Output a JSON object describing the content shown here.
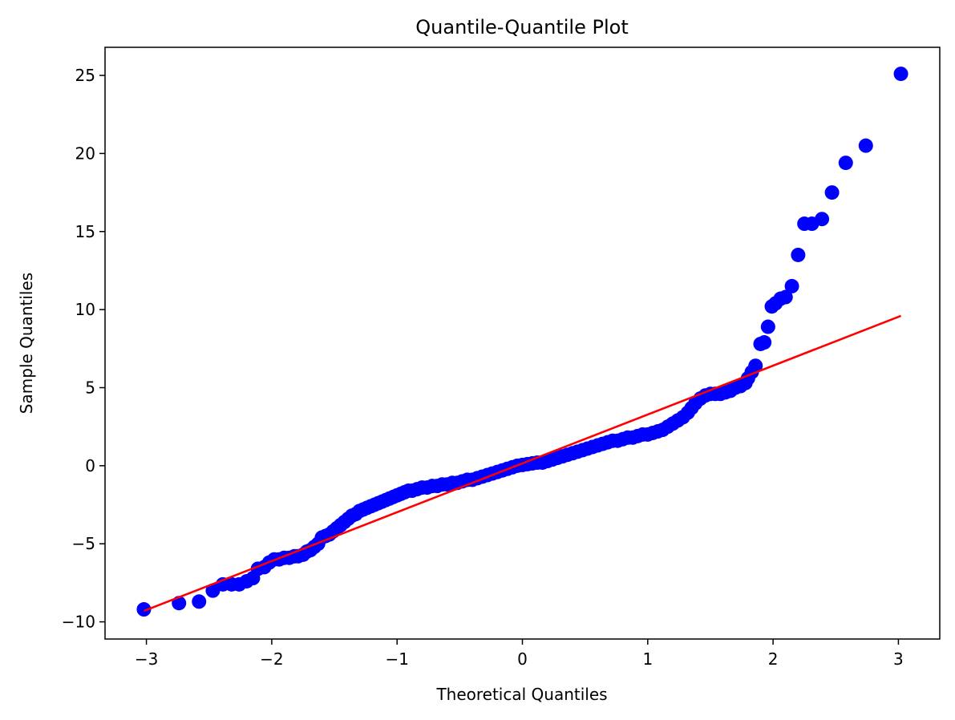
{
  "chart_data": {
    "type": "scatter",
    "title": "Quantile-Quantile Plot",
    "xlabel": "Theoretical Quantiles",
    "ylabel": "Sample Quantiles",
    "xlim": [
      -3.33,
      3.33
    ],
    "ylim": [
      -11.1,
      26.8
    ],
    "x_ticks": [
      -3,
      -2,
      -1,
      0,
      1,
      2,
      3
    ],
    "x_tick_labels": [
      "−3",
      "−2",
      "−1",
      "0",
      "1",
      "2",
      "3"
    ],
    "y_ticks": [
      -10,
      -5,
      0,
      5,
      10,
      15,
      20,
      25
    ],
    "y_tick_labels": [
      "−10",
      "−5",
      "0",
      "5",
      "10",
      "15",
      "20",
      "25"
    ],
    "grid": false,
    "series": [
      {
        "kind": "points",
        "color": "#0000ff",
        "points": [
          [
            -3.02,
            -9.2
          ],
          [
            -2.74,
            -8.8
          ],
          [
            -2.58,
            -8.7
          ],
          [
            -2.47,
            -8.0
          ],
          [
            -2.39,
            -7.6
          ],
          [
            -2.32,
            -7.6
          ],
          [
            -2.26,
            -7.6
          ],
          [
            -2.2,
            -7.4
          ],
          [
            -2.15,
            -7.2
          ],
          [
            -2.11,
            -6.6
          ],
          [
            -2.06,
            -6.5
          ],
          [
            -2.02,
            -6.2
          ],
          [
            -1.98,
            -6.0
          ],
          [
            -1.94,
            -6.0
          ],
          [
            -1.9,
            -5.9
          ],
          [
            -1.86,
            -5.9
          ],
          [
            -1.82,
            -5.8
          ],
          [
            -1.79,
            -5.8
          ],
          [
            -1.75,
            -5.7
          ],
          [
            -1.72,
            -5.5
          ],
          [
            -1.69,
            -5.4
          ],
          [
            -1.66,
            -5.2
          ],
          [
            -1.63,
            -5.0
          ],
          [
            -1.6,
            -4.6
          ],
          [
            -1.57,
            -4.5
          ],
          [
            -1.54,
            -4.4
          ],
          [
            -1.51,
            -4.2
          ],
          [
            -1.48,
            -4.0
          ],
          [
            -1.45,
            -3.8
          ],
          [
            -1.42,
            -3.6
          ],
          [
            -1.39,
            -3.4
          ],
          [
            -1.36,
            -3.2
          ],
          [
            -1.33,
            -3.1
          ],
          [
            -1.3,
            -2.9
          ],
          [
            -1.27,
            -2.8
          ],
          [
            -1.24,
            -2.7
          ],
          [
            -1.21,
            -2.6
          ],
          [
            -1.18,
            -2.5
          ],
          [
            -1.15,
            -2.4
          ],
          [
            -1.12,
            -2.3
          ],
          [
            -1.09,
            -2.2
          ],
          [
            -1.06,
            -2.1
          ],
          [
            -1.03,
            -2.0
          ],
          [
            -1.0,
            -1.9
          ],
          [
            -0.97,
            -1.8
          ],
          [
            -0.94,
            -1.7
          ],
          [
            -0.91,
            -1.6
          ],
          [
            -0.88,
            -1.6
          ],
          [
            -0.84,
            -1.5
          ],
          [
            -0.8,
            -1.4
          ],
          [
            -0.76,
            -1.4
          ],
          [
            -0.72,
            -1.3
          ],
          [
            -0.68,
            -1.3
          ],
          [
            -0.64,
            -1.2
          ],
          [
            -0.6,
            -1.2
          ],
          [
            -0.56,
            -1.1
          ],
          [
            -0.52,
            -1.1
          ],
          [
            -0.48,
            -1.0
          ],
          [
            -0.44,
            -0.9
          ],
          [
            -0.4,
            -0.9
          ],
          [
            -0.36,
            -0.8
          ],
          [
            -0.32,
            -0.7
          ],
          [
            -0.28,
            -0.6
          ],
          [
            -0.24,
            -0.5
          ],
          [
            -0.2,
            -0.4
          ],
          [
            -0.16,
            -0.3
          ],
          [
            -0.12,
            -0.2
          ],
          [
            -0.08,
            -0.1
          ],
          [
            -0.04,
            0.0
          ],
          [
            0.0,
            0.05
          ],
          [
            0.04,
            0.1
          ],
          [
            0.08,
            0.15
          ],
          [
            0.12,
            0.2
          ],
          [
            0.16,
            0.2
          ],
          [
            0.2,
            0.3
          ],
          [
            0.24,
            0.4
          ],
          [
            0.28,
            0.5
          ],
          [
            0.32,
            0.6
          ],
          [
            0.36,
            0.7
          ],
          [
            0.4,
            0.8
          ],
          [
            0.44,
            0.9
          ],
          [
            0.48,
            1.0
          ],
          [
            0.52,
            1.1
          ],
          [
            0.56,
            1.2
          ],
          [
            0.6,
            1.3
          ],
          [
            0.64,
            1.4
          ],
          [
            0.68,
            1.5
          ],
          [
            0.72,
            1.6
          ],
          [
            0.76,
            1.6
          ],
          [
            0.8,
            1.7
          ],
          [
            0.84,
            1.8
          ],
          [
            0.88,
            1.8
          ],
          [
            0.92,
            1.9
          ],
          [
            0.96,
            2.0
          ],
          [
            1.0,
            2.0
          ],
          [
            1.04,
            2.1
          ],
          [
            1.08,
            2.2
          ],
          [
            1.12,
            2.3
          ],
          [
            1.16,
            2.5
          ],
          [
            1.2,
            2.7
          ],
          [
            1.24,
            2.9
          ],
          [
            1.28,
            3.1
          ],
          [
            1.32,
            3.4
          ],
          [
            1.35,
            3.7
          ],
          [
            1.38,
            4.0
          ],
          [
            1.42,
            4.3
          ],
          [
            1.46,
            4.5
          ],
          [
            1.5,
            4.6
          ],
          [
            1.54,
            4.6
          ],
          [
            1.58,
            4.6
          ],
          [
            1.62,
            4.7
          ],
          [
            1.66,
            4.8
          ],
          [
            1.7,
            5.0
          ],
          [
            1.74,
            5.1
          ],
          [
            1.78,
            5.3
          ],
          [
            1.8,
            5.6
          ],
          [
            1.83,
            6.0
          ],
          [
            1.86,
            6.4
          ],
          [
            1.9,
            7.8
          ],
          [
            1.93,
            7.9
          ],
          [
            1.96,
            8.9
          ],
          [
            1.99,
            10.2
          ],
          [
            2.02,
            10.4
          ],
          [
            2.06,
            10.7
          ],
          [
            2.1,
            10.8
          ],
          [
            2.15,
            11.5
          ],
          [
            2.2,
            13.5
          ],
          [
            2.25,
            15.5
          ],
          [
            2.31,
            15.5
          ],
          [
            2.39,
            15.8
          ],
          [
            2.47,
            17.5
          ],
          [
            2.58,
            19.4
          ],
          [
            2.74,
            20.5
          ],
          [
            3.02,
            25.1
          ]
        ]
      },
      {
        "kind": "line",
        "color": "#ff0000",
        "points": [
          [
            -3.02,
            -9.3
          ],
          [
            3.02,
            9.6
          ]
        ]
      }
    ]
  }
}
